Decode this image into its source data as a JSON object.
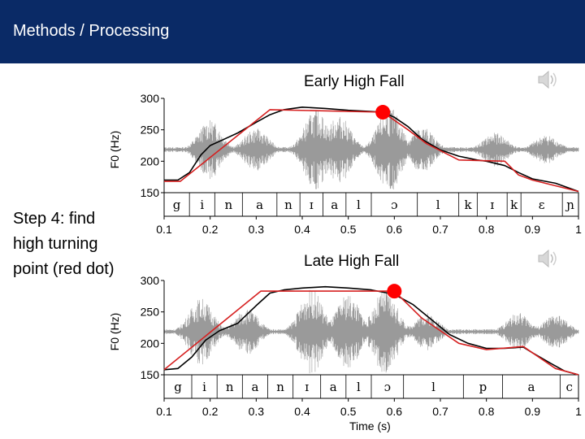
{
  "header": {
    "title": "Methods / Processing"
  },
  "step": {
    "text": "Step 4: find high turning point (red dot)"
  },
  "chart_data": [
    {
      "type": "line",
      "title": "Early High Fall",
      "ylabel": "F0 (Hz)",
      "xlabel": "",
      "xlim": [
        0.1,
        1.0
      ],
      "ylim": [
        150,
        300
      ],
      "xticks": [
        "0.1",
        "0.2",
        "0.3",
        "0.4",
        "0.5",
        "0.6",
        "0.7",
        "0.8",
        "0.9",
        "1"
      ],
      "yticks": [
        "150",
        "200",
        "250",
        "300"
      ],
      "segments": [
        {
          "label": "g",
          "start": 0.1,
          "end": 0.155
        },
        {
          "label": "i",
          "start": 0.155,
          "end": 0.21
        },
        {
          "label": "n",
          "start": 0.21,
          "end": 0.27
        },
        {
          "label": "a",
          "start": 0.27,
          "end": 0.345
        },
        {
          "label": "n",
          "start": 0.345,
          "end": 0.395
        },
        {
          "label": "ɪ",
          "start": 0.395,
          "end": 0.445
        },
        {
          "label": "a",
          "start": 0.445,
          "end": 0.495
        },
        {
          "label": "l",
          "start": 0.495,
          "end": 0.55
        },
        {
          "label": "ɔ",
          "start": 0.55,
          "end": 0.65
        },
        {
          "label": "l",
          "start": 0.65,
          "end": 0.74
        },
        {
          "label": "k",
          "start": 0.74,
          "end": 0.78
        },
        {
          "label": "ɪ",
          "start": 0.78,
          "end": 0.845
        },
        {
          "label": "k",
          "start": 0.845,
          "end": 0.875
        },
        {
          "label": "ɛ",
          "start": 0.875,
          "end": 0.965
        },
        {
          "label": "ɲ",
          "start": 0.965,
          "end": 1.0
        }
      ],
      "series": [
        {
          "color": "#000000",
          "x": [
            0.1,
            0.13,
            0.155,
            0.18,
            0.2,
            0.23,
            0.26,
            0.3,
            0.33,
            0.36,
            0.4,
            0.45,
            0.5,
            0.55,
            0.575,
            0.6,
            0.63,
            0.66,
            0.7,
            0.74,
            0.78,
            0.8,
            0.84,
            0.87,
            0.9,
            0.95,
            1.0
          ],
          "y": [
            170,
            170,
            182,
            210,
            225,
            235,
            245,
            262,
            274,
            282,
            286,
            284,
            281,
            279,
            278,
            270,
            255,
            235,
            218,
            208,
            202,
            200,
            193,
            182,
            172,
            165,
            152
          ]
        },
        {
          "color": "#d62020",
          "x": [
            0.1,
            0.135,
            0.33,
            0.575,
            0.63,
            0.67,
            0.74,
            0.84,
            0.87,
            0.9,
            1.0
          ],
          "y": [
            168,
            168,
            282,
            278,
            250,
            228,
            202,
            200,
            178,
            170,
            152
          ]
        }
      ],
      "points": [
        {
          "x": 0.575,
          "y": 278,
          "color": "#ff0000"
        }
      ]
    },
    {
      "type": "line",
      "title": "Late High Fall",
      "ylabel": "F0 (Hz)",
      "xlabel": "Time (s)",
      "xlim": [
        0.1,
        1.0
      ],
      "ylim": [
        150,
        300
      ],
      "xticks": [
        "0.1",
        "0.2",
        "0.3",
        "0.4",
        "0.5",
        "0.6",
        "0.7",
        "0.8",
        "0.9",
        "1"
      ],
      "yticks": [
        "150",
        "200",
        "250",
        "300"
      ],
      "segments": [
        {
          "label": "g",
          "start": 0.1,
          "end": 0.16
        },
        {
          "label": "i",
          "start": 0.16,
          "end": 0.215
        },
        {
          "label": "n",
          "start": 0.215,
          "end": 0.27
        },
        {
          "label": "a",
          "start": 0.27,
          "end": 0.325
        },
        {
          "label": "n",
          "start": 0.325,
          "end": 0.38
        },
        {
          "label": "ɪ",
          "start": 0.38,
          "end": 0.44
        },
        {
          "label": "a",
          "start": 0.44,
          "end": 0.495
        },
        {
          "label": "l",
          "start": 0.495,
          "end": 0.55
        },
        {
          "label": "ɔ",
          "start": 0.55,
          "end": 0.62
        },
        {
          "label": "l",
          "start": 0.62,
          "end": 0.75
        },
        {
          "label": "p",
          "start": 0.75,
          "end": 0.835
        },
        {
          "label": "a",
          "start": 0.835,
          "end": 0.96
        },
        {
          "label": "c",
          "start": 0.96,
          "end": 1.0
        }
      ],
      "series": [
        {
          "color": "#000000",
          "x": [
            0.1,
            0.13,
            0.16,
            0.19,
            0.22,
            0.26,
            0.3,
            0.33,
            0.36,
            0.4,
            0.45,
            0.5,
            0.55,
            0.6,
            0.64,
            0.68,
            0.72,
            0.76,
            0.8,
            0.84,
            0.88,
            0.9,
            0.94,
            0.97,
            1.0
          ],
          "y": [
            158,
            160,
            178,
            205,
            220,
            232,
            260,
            280,
            285,
            288,
            290,
            288,
            285,
            278,
            262,
            238,
            214,
            200,
            192,
            192,
            194,
            185,
            168,
            156,
            150
          ]
        },
        {
          "color": "#d62020",
          "x": [
            0.1,
            0.31,
            0.6,
            0.66,
            0.74,
            0.8,
            0.88,
            0.95,
            1.0
          ],
          "y": [
            158,
            283,
            283,
            240,
            200,
            190,
            195,
            160,
            150
          ]
        }
      ],
      "points": [
        {
          "x": 0.6,
          "y": 283,
          "color": "#ff0000"
        }
      ]
    }
  ]
}
